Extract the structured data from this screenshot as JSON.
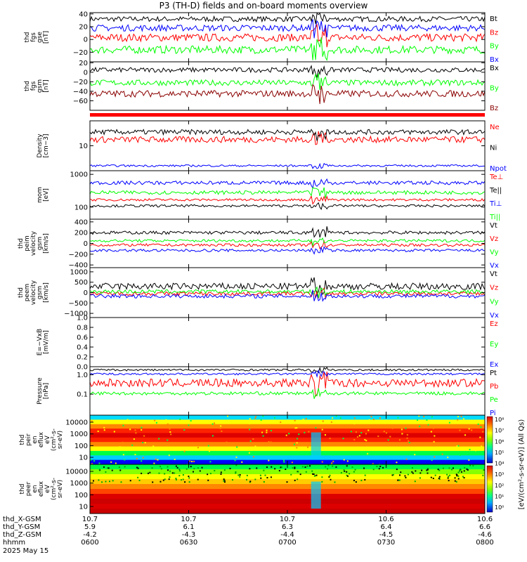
{
  "title": "P3 (TH-D) fields and on-board moments overview",
  "date": "2025 May 15",
  "colors": {
    "black": "#000000",
    "red": "#ff0000",
    "green": "#00ff00",
    "blue": "#0000ff",
    "dkred": "#8b0000"
  },
  "footer": {
    "rows": [
      {
        "label": "thd_X-GSM",
        "values": [
          "10.7",
          "10.7",
          "10.7",
          "10.6",
          "10.6"
        ]
      },
      {
        "label": "thd_Y-GSM",
        "values": [
          "5.9",
          "6.1",
          "6.3",
          "6.4",
          "6.6"
        ]
      },
      {
        "label": "thd_Z-GSM",
        "values": [
          "-4.2",
          "-4.3",
          "-4.4",
          "-4.5",
          "-4.6"
        ]
      },
      {
        "label": "hhmm",
        "values": [
          "0600",
          "0630",
          "0700",
          "0730",
          "0800"
        ]
      }
    ]
  },
  "chart_data": [
    {
      "type": "line",
      "ylabel": [
        "thd",
        "fgs",
        "gse",
        "[nT]"
      ],
      "ylim": [
        -35,
        42
      ],
      "yticks": [
        {
          "v": 40,
          "t": "40"
        },
        {
          "v": 20,
          "t": "20"
        },
        {
          "v": 0,
          "t": "0"
        },
        {
          "v": -20,
          "t": "−20"
        }
      ],
      "series": [
        {
          "name": "Bt",
          "color": "#000000",
          "base": 32,
          "amp": 4
        },
        {
          "name": "Bz",
          "color": "#ff0000",
          "base": 3,
          "amp": 6
        },
        {
          "name": "By",
          "color": "#00ff00",
          "base": -16,
          "amp": 6
        },
        {
          "name": "Bx",
          "color": "#0000ff",
          "base": 18,
          "amp": 5
        }
      ]
    },
    {
      "type": "line",
      "ylabel": [
        "thd",
        "fgs",
        "gsm",
        "[nT]"
      ],
      "ylim": [
        -80,
        22
      ],
      "yticks": [
        {
          "v": 20,
          "t": "20"
        },
        {
          "v": 0,
          "t": "0"
        },
        {
          "v": -20,
          "t": "−20"
        },
        {
          "v": -40,
          "t": "−40"
        },
        {
          "v": -60,
          "t": "−60"
        }
      ],
      "series": [
        {
          "name": "Bx",
          "color": "#000000",
          "base": 5,
          "amp": 5
        },
        {
          "name": "By",
          "color": "#00ff00",
          "base": -22,
          "amp": 6
        },
        {
          "name": "Bz",
          "color": "#8b0000",
          "base": -45,
          "amp": 7
        }
      ]
    },
    {
      "type": "line",
      "ylabel": [
        "Density",
        "[cm−3]"
      ],
      "ylim": [
        0,
        4
      ],
      "yticks": [
        {
          "v": 2,
          "t": "10"
        }
      ],
      "series": [
        {
          "name": "Ne",
          "color": "#ff0000",
          "base": 2.5,
          "amp": 0.25
        },
        {
          "name": "Ni",
          "color": "#000000",
          "base": 3.1,
          "amp": 0.2
        },
        {
          "name": "Npot",
          "color": "#0000ff",
          "base": 0.4,
          "amp": 0.08
        }
      ]
    },
    {
      "type": "line",
      "ylabel": [
        "mom",
        "[eV]"
      ],
      "ylim": [
        0,
        4
      ],
      "yticks": [
        {
          "v": 3.7,
          "t": "1000"
        },
        {
          "v": 1.0,
          "t": "100"
        }
      ],
      "series": [
        {
          "name": "Te⊥",
          "color": "#ff0000",
          "base": 1.6,
          "amp": 0.1
        },
        {
          "name": "Te||",
          "color": "#000000",
          "base": 1.1,
          "amp": 0.1
        },
        {
          "name": "Ti⊥",
          "color": "#0000ff",
          "base": 3.0,
          "amp": 0.15
        },
        {
          "name": "Ti||",
          "color": "#00ff00",
          "base": 2.2,
          "amp": 0.15
        }
      ]
    },
    {
      "type": "line",
      "ylabel": [
        "thd",
        "peim",
        "velocity",
        "gsm",
        "[km/s]"
      ],
      "ylim": [
        -450,
        450
      ],
      "yticks": [
        {
          "v": 400,
          "t": "400"
        },
        {
          "v": 200,
          "t": "200"
        },
        {
          "v": 0,
          "t": "0"
        },
        {
          "v": -200,
          "t": "−200"
        },
        {
          "v": -400,
          "t": "−400"
        }
      ],
      "series": [
        {
          "name": "Vt",
          "color": "#000000",
          "base": 200,
          "amp": 30
        },
        {
          "name": "Vz",
          "color": "#ff0000",
          "base": -30,
          "amp": 25
        },
        {
          "name": "Vy",
          "color": "#00ff00",
          "base": 50,
          "amp": 25
        },
        {
          "name": "Vx",
          "color": "#0000ff",
          "base": -130,
          "amp": 25
        }
      ]
    },
    {
      "type": "line",
      "ylabel": [
        "thd",
        "peem",
        "velocity",
        "gsm",
        "[km/s]"
      ],
      "ylim": [
        -1200,
        1200
      ],
      "yticks": [
        {
          "v": 1000,
          "t": "1000"
        },
        {
          "v": 500,
          "t": "500"
        },
        {
          "v": 0,
          "t": "0"
        },
        {
          "v": -500,
          "t": "−500"
        },
        {
          "v": -1000,
          "t": "−1000"
        }
      ],
      "series": [
        {
          "name": "Vt",
          "color": "#000000",
          "base": 300,
          "amp": 160
        },
        {
          "name": "Vz",
          "color": "#ff0000",
          "base": -50,
          "amp": 90
        },
        {
          "name": "Vy",
          "color": "#00ff00",
          "base": 50,
          "amp": 90
        },
        {
          "name": "Vx",
          "color": "#0000ff",
          "base": -170,
          "amp": 90
        }
      ]
    },
    {
      "type": "line",
      "ylabel": [
        "E=−VxB",
        "[mV/m]"
      ],
      "ylim": [
        0,
        1
      ],
      "yticks": [
        {
          "v": 1.0,
          "t": "1.0"
        },
        {
          "v": 0.8,
          "t": "0.8"
        },
        {
          "v": 0.6,
          "t": "0.6"
        },
        {
          "v": 0.4,
          "t": "0.4"
        },
        {
          "v": 0.2,
          "t": "0.2"
        },
        {
          "v": 0.0,
          "t": "0.0"
        }
      ],
      "series": [
        {
          "name": "Ez",
          "color": "#ff0000"
        },
        {
          "name": "Ey",
          "color": "#00ff00"
        },
        {
          "name": "Ex",
          "color": "#0000ff"
        }
      ]
    },
    {
      "type": "line",
      "ylabel": [
        "Pressure",
        "[nPa]"
      ],
      "ylim": [
        0,
        3
      ],
      "yticks": [
        {
          "v": 2.5,
          "t": "1.0"
        },
        {
          "v": 1.3,
          "t": "0.1"
        }
      ],
      "series": [
        {
          "name": "Pt",
          "color": "#000000",
          "base": 2.8,
          "amp": 0.06
        },
        {
          "name": "Pb",
          "color": "#ff0000",
          "base": 2.0,
          "amp": 0.25
        },
        {
          "name": "Pe",
          "color": "#00ff00",
          "base": 1.35,
          "amp": 0.1
        },
        {
          "name": "Pi",
          "color": "#0000ff",
          "base": 2.55,
          "amp": 0.06
        }
      ]
    },
    {
      "type": "heatmap",
      "ylabel": [
        "thd",
        "peir",
        "en",
        "eflux",
        "eV",
        "(cm²-s-",
        "sr-eV)"
      ],
      "yticks": [
        {
          "v": 10000,
          "t": "10000"
        },
        {
          "v": 1000,
          "t": "1000"
        },
        {
          "v": 100,
          "t": "100"
        },
        {
          "v": 10,
          "t": "10"
        }
      ]
    },
    {
      "type": "heatmap",
      "ylabel": [
        "thd",
        "peer",
        "en",
        "eflux",
        "eV",
        "(cm²-s-",
        "sr-eV)"
      ],
      "yticks": [
        {
          "v": 10000,
          "t": "10000"
        },
        {
          "v": 1000,
          "t": "1000"
        },
        {
          "v": 100,
          "t": "100"
        },
        {
          "v": 10,
          "t": "10"
        }
      ]
    }
  ],
  "colorbar": {
    "label": "[eV/(cm²-s-sr-eV)] (All Qs)",
    "ticks": [
      "10⁸",
      "10⁷",
      "10⁶",
      "10⁵",
      "10⁴",
      "10³",
      "10²",
      "10¹",
      "10⁰"
    ]
  }
}
